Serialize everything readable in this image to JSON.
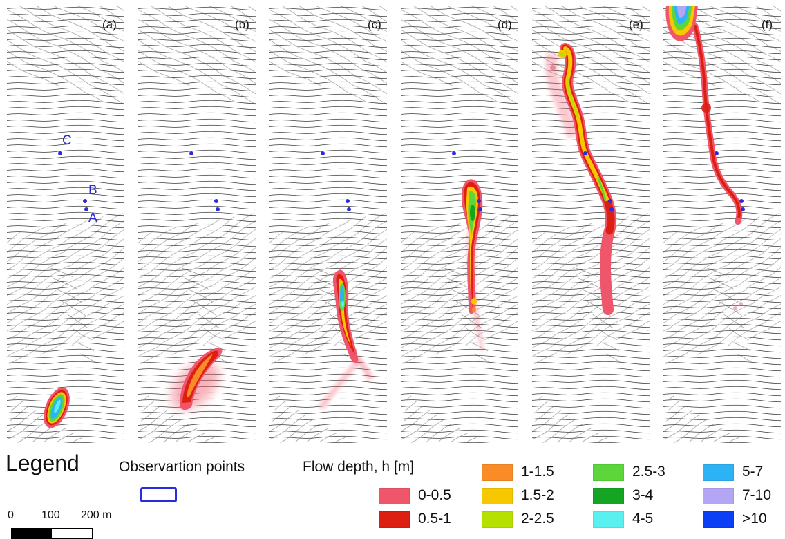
{
  "panels": [
    {
      "label": "(a)"
    },
    {
      "label": "(b)"
    },
    {
      "label": "(c)"
    },
    {
      "label": "(d)"
    },
    {
      "label": "(e)"
    },
    {
      "label": "(f)"
    }
  ],
  "points": {
    "A": "A",
    "B": "B",
    "C": "C"
  },
  "legend": {
    "title": "Legend",
    "observation_title": "Observartion points",
    "flow_depth_title": "Flow depth, h [m]",
    "classes": [
      {
        "label": "0-0.5",
        "color": "#f0566b"
      },
      {
        "label": "0.5-1",
        "color": "#dd1f12"
      },
      {
        "label": "1-1.5",
        "color": "#fa8c28"
      },
      {
        "label": "1.5-2",
        "color": "#f7c800"
      },
      {
        "label": "2-2.5",
        "color": "#b5e000"
      },
      {
        "label": "2.5-3",
        "color": "#5cd63a"
      },
      {
        "label": "3-4",
        "color": "#15a523"
      },
      {
        "label": "4-5",
        "color": "#5af0f0"
      },
      {
        "label": "5-7",
        "color": "#2cb3f5"
      },
      {
        "label": "7-10",
        "color": "#b4a6f5"
      },
      {
        "label": ">10",
        "color": "#0a3ff5"
      }
    ],
    "observation_color": "#2a2adf"
  },
  "scale": {
    "labels": [
      "0",
      "100",
      "200 m"
    ]
  }
}
